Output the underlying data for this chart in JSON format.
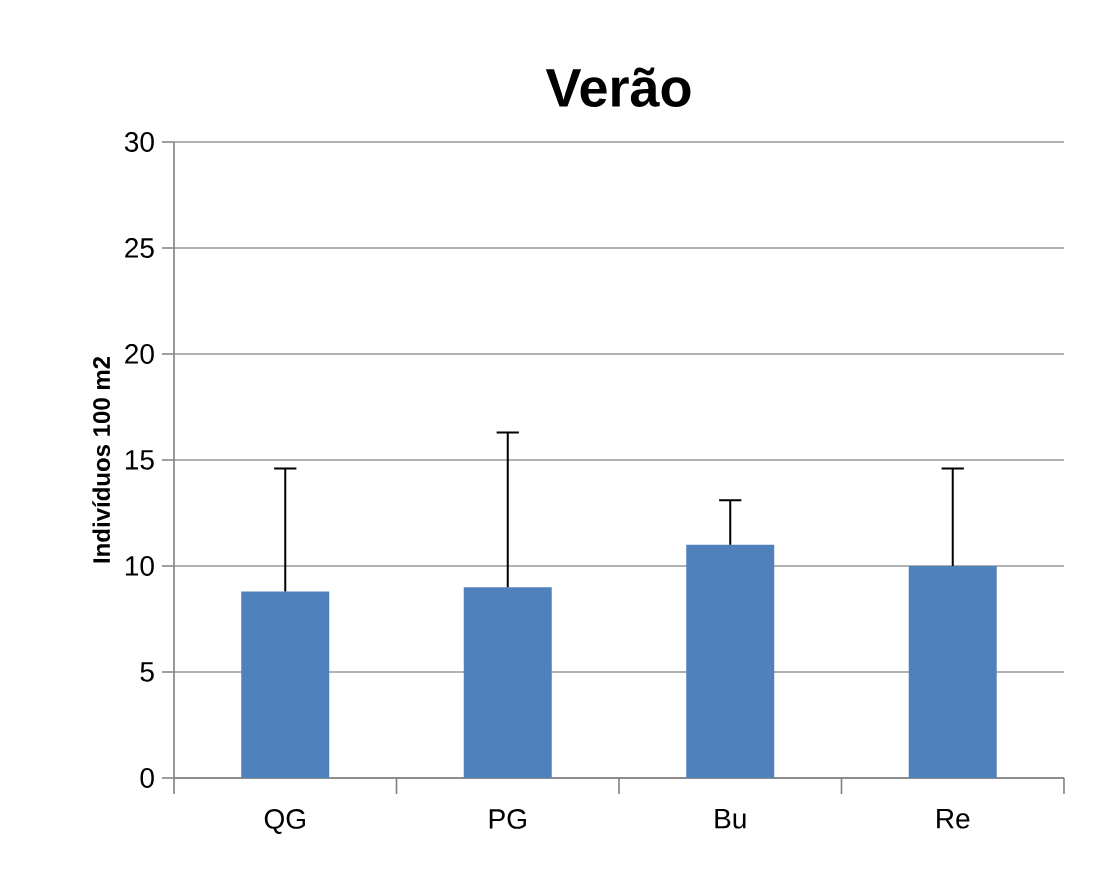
{
  "chart_data": {
    "type": "bar",
    "title": "Verão",
    "ylabel": "Indivíduos 100 m2",
    "categories": [
      "QG",
      "PG",
      "Bu",
      "Re"
    ],
    "values": [
      8.8,
      9.0,
      11.0,
      10.0
    ],
    "color": "#4f81bd",
    "errors": [
      [
        8.8,
        14.6
      ],
      [
        9.0,
        16.3
      ],
      [
        11.0,
        13.1
      ],
      [
        10.0,
        14.6
      ]
    ],
    "ylim": [
      0,
      30
    ],
    "yticks": [
      0,
      5,
      10,
      15,
      20,
      25,
      30
    ],
    "grid": "y"
  }
}
